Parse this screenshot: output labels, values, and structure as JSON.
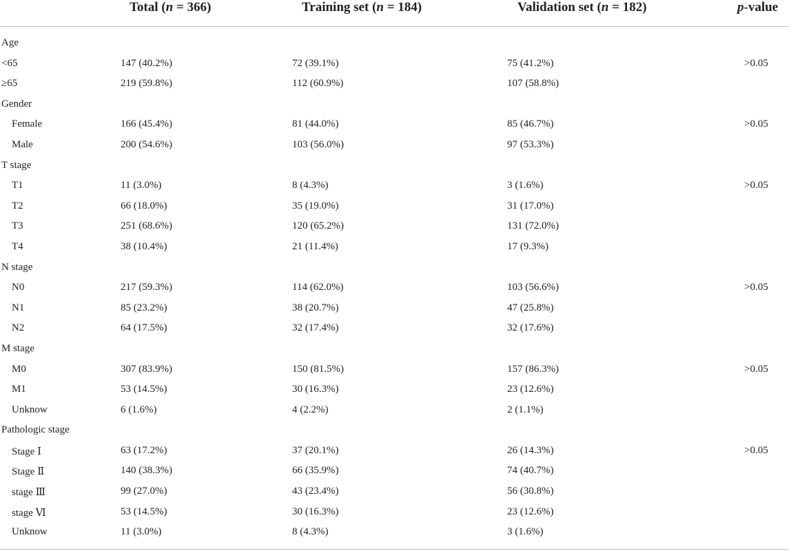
{
  "table": {
    "header": {
      "total": {
        "label": "Total (",
        "n": "n",
        "rest": " = 366)"
      },
      "training": {
        "label": "Training set (",
        "n": "n",
        "rest": " = 184)"
      },
      "validation": {
        "label": "Validation set (",
        "n": "n",
        "rest": " = 182)"
      },
      "pvalue": {
        "p": "p",
        "rest": "-value"
      }
    },
    "rows": [
      {
        "label": "Age",
        "group": true,
        "total": "",
        "training": "",
        "validation": "",
        "p": ""
      },
      {
        "label": "<65",
        "group": false,
        "flush": true,
        "total": "147 (40.2%)",
        "training": "72 (39.1%)",
        "validation": "75 (41.2%)",
        "p": ">0.05"
      },
      {
        "label": "≥65",
        "group": false,
        "flush": true,
        "total": "219 (59.8%)",
        "training": "112 (60.9%)",
        "validation": "107 (58.8%)",
        "p": ""
      },
      {
        "label": "Gender",
        "group": true,
        "total": "",
        "training": "",
        "validation": "",
        "p": ""
      },
      {
        "label": "Female",
        "group": false,
        "total": "166 (45.4%)",
        "training": "81 (44.0%)",
        "validation": "85 (46.7%)",
        "p": ">0.05"
      },
      {
        "label": "Male",
        "group": false,
        "total": "200 (54.6%)",
        "training": "103 (56.0%)",
        "validation": "97 (53.3%)",
        "p": ""
      },
      {
        "label": "T stage",
        "group": true,
        "total": "",
        "training": "",
        "validation": "",
        "p": ""
      },
      {
        "label": "T1",
        "group": false,
        "total": "11 (3.0%)",
        "training": "8 (4.3%)",
        "validation": "3 (1.6%)",
        "p": ">0.05"
      },
      {
        "label": "T2",
        "group": false,
        "total": "66 (18.0%)",
        "training": "35 (19.0%)",
        "validation": "31 (17.0%)",
        "p": ""
      },
      {
        "label": "T3",
        "group": false,
        "total": "251 (68.6%)",
        "training": "120 (65.2%)",
        "validation": "131 (72.0%)",
        "p": ""
      },
      {
        "label": "T4",
        "group": false,
        "total": "38 (10.4%)",
        "training": "21 (11.4%)",
        "validation": "17 (9.3%)",
        "p": ""
      },
      {
        "label": "N stage",
        "group": true,
        "total": "",
        "training": "",
        "validation": "",
        "p": ""
      },
      {
        "label": "N0",
        "group": false,
        "total": "217 (59.3%)",
        "training": "114 (62.0%)",
        "validation": "103 (56.6%)",
        "p": ">0.05"
      },
      {
        "label": "N1",
        "group": false,
        "total": "85 (23.2%)",
        "training": "38 (20.7%)",
        "validation": "47 (25.8%)",
        "p": ""
      },
      {
        "label": "N2",
        "group": false,
        "total": "64 (17.5%)",
        "training": "32 (17.4%)",
        "validation": "32 (17.6%)",
        "p": ""
      },
      {
        "label": "M stage",
        "group": true,
        "total": "",
        "training": "",
        "validation": "",
        "p": ""
      },
      {
        "label": "M0",
        "group": false,
        "total": "307 (83.9%)",
        "training": "150 (81.5%)",
        "validation": "157 (86.3%)",
        "p": ">0.05"
      },
      {
        "label": "M1",
        "group": false,
        "total": "53 (14.5%)",
        "training": "30 (16.3%)",
        "validation": "23 (12.6%)",
        "p": ""
      },
      {
        "label": "Unknow",
        "group": false,
        "total": "6 (1.6%)",
        "training": "4 (2.2%)",
        "validation": "2 (1.1%)",
        "p": ""
      },
      {
        "label": "Pathologic stage",
        "group": true,
        "total": "",
        "training": "",
        "validation": "",
        "p": ""
      },
      {
        "label": "Stage Ⅰ",
        "group": false,
        "total": "63 (17.2%)",
        "training": "37 (20.1%)",
        "validation": "26 (14.3%)",
        "p": ">0.05"
      },
      {
        "label": "Stage Ⅱ",
        "group": false,
        "total": "140 (38.3%)",
        "training": "66 (35.9%)",
        "validation": "74 (40.7%)",
        "p": ""
      },
      {
        "label": "stage Ⅲ",
        "group": false,
        "total": "99 (27.0%)",
        "training": "43 (23.4%)",
        "validation": "56 (30.8%)",
        "p": ""
      },
      {
        "label": "stage Ⅵ",
        "group": false,
        "total": "53 (14.5%)",
        "training": "30 (16.3%)",
        "validation": "23 (12.6%)",
        "p": ""
      },
      {
        "label": "Unknow",
        "group": false,
        "total": "11 (3.0%)",
        "training": "8 (4.3%)",
        "validation": "3 (1.6%)",
        "p": ""
      }
    ]
  }
}
